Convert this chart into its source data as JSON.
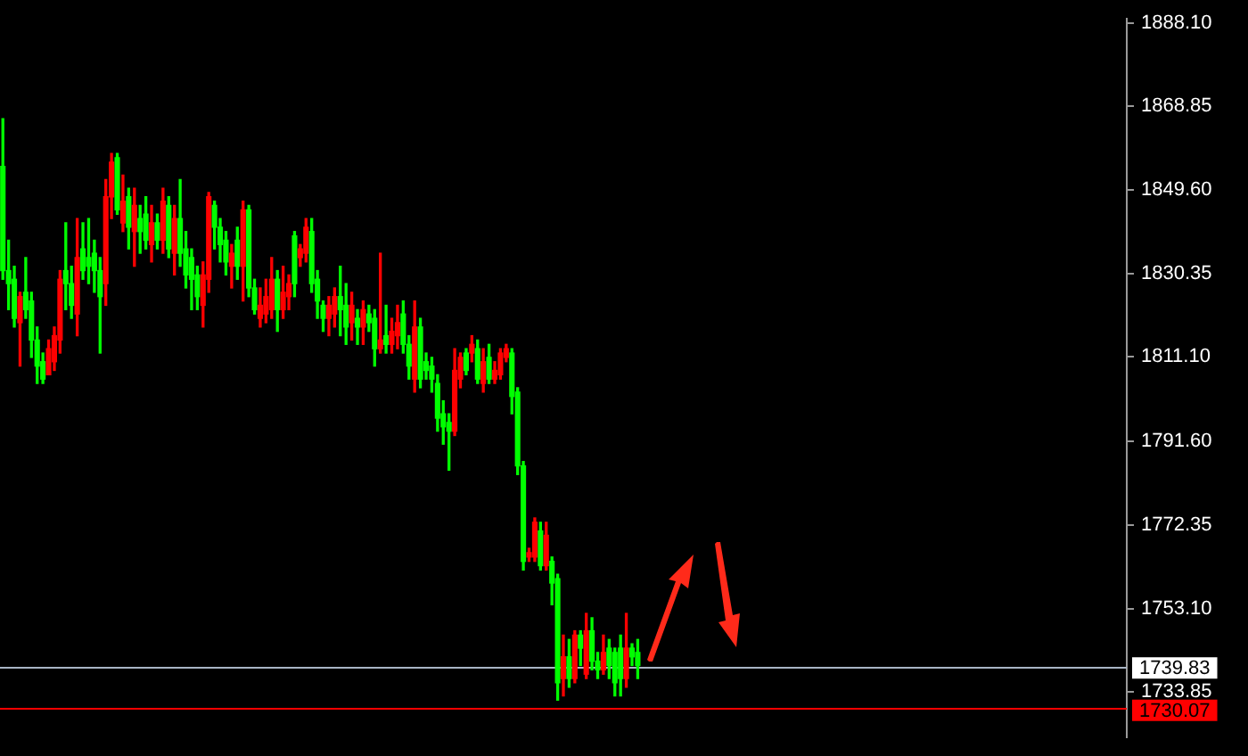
{
  "chart_data": {
    "type": "candlestick",
    "categories": [
      null,
      null,
      null,
      null,
      null,
      null,
      null,
      null,
      null,
      null,
      null,
      null,
      null,
      null,
      null,
      null,
      null,
      null,
      null,
      null,
      null,
      null,
      null,
      null,
      null,
      null,
      null,
      null,
      null,
      null,
      null,
      null,
      null,
      null,
      null,
      null,
      null,
      null,
      null,
      null,
      null,
      null,
      null,
      null,
      null,
      null,
      null,
      null,
      null,
      null,
      null,
      null,
      null,
      null,
      null,
      null,
      null,
      null,
      null,
      null,
      null,
      null,
      null,
      null,
      null,
      null,
      null,
      null,
      null,
      null,
      null,
      null,
      null,
      null,
      null,
      null,
      null,
      null,
      null,
      null,
      null,
      null,
      null,
      null,
      null,
      null,
      null,
      null,
      null,
      null,
      null,
      null,
      null,
      null,
      null,
      null,
      null,
      null,
      null,
      null,
      null,
      null,
      null,
      null,
      null,
      null,
      null,
      null,
      null,
      null,
      null,
      null,
      null,
      null,
      null,
      null,
      null,
      null,
      null,
      null,
      null,
      null,
      null,
      null,
      null,
      null,
      null,
      null,
      null,
      null,
      null,
      null,
      null,
      null,
      null,
      null,
      null,
      null,
      null,
      null,
      null,
      null,
      null,
      null,
      null,
      null,
      null,
      null,
      null,
      null,
      null,
      null,
      null,
      null,
      null,
      null,
      null,
      null,
      null,
      null,
      null,
      null,
      null,
      null,
      null,
      null,
      null,
      null,
      null,
      null,
      null,
      null,
      null,
      null,
      null,
      null,
      null,
      null,
      null,
      null,
      null,
      null,
      null,
      null,
      null,
      null,
      null,
      null,
      null,
      null,
      null,
      null,
      null,
      null,
      null,
      null,
      null
    ],
    "ohlc": [
      [
        1855,
        1866,
        1829,
        1831
      ],
      [
        1831,
        1838,
        1822,
        1828
      ],
      [
        1829,
        1832,
        1818,
        1820
      ],
      [
        1819,
        1826,
        1809,
        1825
      ],
      [
        1826,
        1834,
        1820,
        1822
      ],
      [
        1824,
        1826,
        1811,
        1815
      ],
      [
        1815,
        1818,
        1805,
        1809
      ],
      [
        1810,
        1812,
        1805,
        1806
      ],
      [
        1807,
        1815,
        1807,
        1813
      ],
      [
        1810,
        1818,
        1808,
        1816
      ],
      [
        1815,
        1831,
        1812,
        1829
      ],
      [
        1831,
        1842,
        1822,
        1828
      ],
      [
        1828,
        1832,
        1820,
        1823
      ],
      [
        1821,
        1843,
        1816,
        1834
      ],
      [
        1836,
        1842,
        1829,
        1831
      ],
      [
        1834,
        1843,
        1828,
        1832
      ],
      [
        1835,
        1838,
        1826,
        1831
      ],
      [
        1831,
        1834,
        1812,
        1825
      ],
      [
        1828,
        1852,
        1823,
        1848
      ],
      [
        1848,
        1858,
        1843,
        1856
      ],
      [
        1857,
        1858,
        1844,
        1845
      ],
      [
        1842,
        1853,
        1840,
        1847
      ],
      [
        1848,
        1850,
        1836,
        1841
      ],
      [
        1840,
        1850,
        1832,
        1846
      ],
      [
        1843,
        1846,
        1835,
        1840
      ],
      [
        1844,
        1848,
        1836,
        1838
      ],
      [
        1837,
        1846,
        1833,
        1842
      ],
      [
        1842,
        1844,
        1836,
        1838
      ],
      [
        1838,
        1850,
        1835,
        1847
      ],
      [
        1846,
        1848,
        1834,
        1836
      ],
      [
        1835,
        1846,
        1830,
        1843
      ],
      [
        1843,
        1852,
        1832,
        1835
      ],
      [
        1836,
        1840,
        1827,
        1830
      ],
      [
        1834,
        1836,
        1822,
        1829
      ],
      [
        1830,
        1832,
        1822,
        1825
      ],
      [
        1823,
        1833,
        1818,
        1830
      ],
      [
        1829,
        1849,
        1826,
        1848
      ],
      [
        1846,
        1847,
        1836,
        1841
      ],
      [
        1841,
        1843,
        1833,
        1837
      ],
      [
        1838,
        1840,
        1830,
        1833
      ],
      [
        1832,
        1837,
        1827,
        1835
      ],
      [
        1838,
        1841,
        1829,
        1832
      ],
      [
        1832,
        1847,
        1824,
        1845
      ],
      [
        1845,
        1846,
        1825,
        1827
      ],
      [
        1827,
        1829,
        1821,
        1822
      ],
      [
        1820,
        1827,
        1818,
        1823
      ],
      [
        1821,
        1829,
        1819,
        1825
      ],
      [
        1822,
        1834,
        1820,
        1829
      ],
      [
        1829,
        1831,
        1817,
        1822
      ],
      [
        1822,
        1832,
        1820,
        1826
      ],
      [
        1825,
        1830,
        1822,
        1828
      ],
      [
        1839,
        1840,
        1825,
        1828
      ],
      [
        1834,
        1837,
        1832,
        1836
      ],
      [
        1835,
        1843,
        1833,
        1841
      ],
      [
        1840,
        1843,
        1826,
        1828
      ],
      [
        1829,
        1831,
        1820,
        1824
      ],
      [
        1823,
        1824,
        1817,
        1820
      ],
      [
        1820,
        1825,
        1816,
        1823
      ],
      [
        1821,
        1827,
        1818,
        1825
      ],
      [
        1825,
        1832,
        1816,
        1822
      ],
      [
        1823,
        1828,
        1814,
        1818
      ],
      [
        1819,
        1826,
        1815,
        1823
      ],
      [
        1820,
        1822,
        1814,
        1818
      ],
      [
        1818,
        1824,
        1814,
        1822
      ],
      [
        1821,
        1823,
        1817,
        1819
      ],
      [
        1820,
        1822,
        1809,
        1813
      ],
      [
        1813,
        1835,
        1812,
        1815
      ],
      [
        1816,
        1823,
        1812,
        1814
      ],
      [
        1814,
        1820,
        1812,
        1817
      ],
      [
        1816,
        1823,
        1813,
        1819
      ],
      [
        1821,
        1824,
        1812,
        1814
      ],
      [
        1814,
        1816,
        1806,
        1809
      ],
      [
        1806,
        1824,
        1803,
        1818
      ],
      [
        1818,
        1820,
        1804,
        1806
      ],
      [
        1810,
        1812,
        1806,
        1808
      ],
      [
        1809,
        1811,
        1803,
        1806
      ],
      [
        1805,
        1807,
        1794,
        1797
      ],
      [
        1798,
        1801,
        1791,
        1795
      ],
      [
        1796,
        1798,
        1785,
        1794
      ],
      [
        1794,
        1813,
        1793,
        1808
      ],
      [
        1806,
        1812,
        1804,
        1811
      ],
      [
        1812,
        1813,
        1807,
        1808
      ],
      [
        1812,
        1816,
        1810,
        1814
      ],
      [
        1813,
        1815,
        1805,
        1806
      ],
      [
        1805,
        1813,
        1803,
        1810
      ],
      [
        1811,
        1814,
        1805,
        1806
      ],
      [
        1806,
        1810,
        1805,
        1808
      ],
      [
        1807,
        1813,
        1806,
        1812
      ],
      [
        1811,
        1814,
        1810,
        1813
      ],
      [
        1812,
        1813,
        1798,
        1802
      ],
      [
        1803,
        1804,
        1784,
        1786
      ],
      [
        1786,
        1787,
        1762,
        1764
      ],
      [
        1765,
        1767,
        1764,
        1766
      ],
      [
        1765,
        1774,
        1764,
        1773
      ],
      [
        1771,
        1773,
        1762,
        1763
      ],
      [
        1763,
        1773,
        1762,
        1770
      ],
      [
        1764,
        1765,
        1754,
        1759
      ],
      [
        1760,
        1761,
        1732,
        1736
      ],
      [
        1737,
        1747,
        1733,
        1742
      ],
      [
        1742,
        1746,
        1735,
        1737
      ],
      [
        1737,
        1748,
        1736,
        1747
      ],
      [
        1747,
        1748,
        1740,
        1744
      ],
      [
        1738,
        1752,
        1737,
        1748
      ],
      [
        1748,
        1751,
        1739,
        1741
      ],
      [
        1741,
        1743,
        1737,
        1739
      ],
      [
        1739,
        1747,
        1738,
        1743
      ],
      [
        1744,
        1746,
        1737,
        1740
      ],
      [
        1743,
        1744,
        1733,
        1736
      ],
      [
        1744,
        1747,
        1733,
        1737
      ],
      [
        1737,
        1752,
        1735,
        1744
      ],
      [
        1744,
        1745,
        1740,
        1742
      ],
      [
        1743,
        1746,
        1737,
        1740
      ],
      null,
      null,
      null,
      null,
      null,
      null,
      null,
      null,
      null,
      null,
      null,
      null,
      null,
      null,
      null,
      null,
      null,
      null,
      null,
      null,
      null,
      null,
      null,
      null,
      null,
      null,
      null,
      null,
      null,
      null,
      null,
      null,
      null,
      null,
      null,
      null,
      null,
      null,
      null,
      null,
      null,
      null,
      null,
      null,
      null,
      null,
      null,
      null,
      null,
      null,
      null,
      null,
      null,
      null,
      null,
      null,
      null,
      null,
      null,
      null,
      null,
      null,
      null,
      null,
      null,
      null,
      null,
      null,
      null,
      null,
      null,
      null,
      null,
      null,
      null,
      null,
      null,
      null,
      null,
      null,
      null,
      null,
      null,
      null,
      null
    ],
    "colors": [
      "#00ff00",
      "#00ff00",
      "#00ff00",
      "#ff0000",
      "#00ff00",
      "#00ff00",
      "#00ff00",
      "#00ff00",
      "#ff0000",
      "#ff0000",
      "#ff0000",
      "#00ff00",
      "#00ff00",
      "#ff0000",
      "#00ff00",
      "#00ff00",
      "#00ff00",
      "#00ff00",
      "#ff0000",
      "#ff0000",
      "#00ff00",
      "#ff0000",
      "#00ff00",
      "#ff0000",
      "#00ff00",
      "#00ff00",
      "#ff0000",
      "#00ff00",
      "#ff0000",
      "#00ff00",
      "#ff0000",
      "#00ff00",
      "#00ff00",
      "#00ff00",
      "#00ff00",
      "#ff0000",
      "#ff0000",
      "#00ff00",
      "#00ff00",
      "#00ff00",
      "#ff0000",
      "#00ff00",
      "#ff0000",
      "#00ff00",
      "#00ff00",
      "#ff0000",
      "#ff0000",
      "#ff0000",
      "#00ff00",
      "#ff0000",
      "#ff0000",
      "#00ff00",
      "#ff0000",
      "#ff0000",
      "#00ff00",
      "#00ff00",
      "#00ff00",
      "#ff0000",
      "#ff0000",
      "#00ff00",
      "#00ff00",
      "#ff0000",
      "#00ff00",
      "#ff0000",
      "#00ff00",
      "#00ff00",
      "#ff0000",
      "#00ff00",
      "#ff0000",
      "#ff0000",
      "#00ff00",
      "#00ff00",
      "#ff0000",
      "#00ff00",
      "#00ff00",
      "#00ff00",
      "#00ff00",
      "#00ff00",
      "#00ff00",
      "#ff0000",
      "#ff0000",
      "#00ff00",
      "#ff0000",
      "#00ff00",
      "#ff0000",
      "#00ff00",
      "#ff0000",
      "#ff0000",
      "#ff0000",
      "#00ff00",
      "#00ff00",
      "#00ff00",
      "#ff0000",
      "#ff0000",
      "#00ff00",
      "#ff0000",
      "#00ff00",
      "#00ff00",
      "#ff0000",
      "#00ff00",
      "#ff0000",
      "#00ff00",
      "#ff0000",
      "#00ff00",
      "#00ff00",
      "#ff0000",
      "#00ff00",
      "#00ff00",
      "#00ff00",
      "#ff0000",
      "#00ff00",
      "#00ff00",
      null,
      null,
      null,
      null,
      null,
      null,
      null,
      null,
      null,
      null,
      null,
      null,
      null,
      null,
      null,
      null,
      null,
      null,
      null,
      null,
      null,
      null,
      null,
      null,
      null,
      null,
      null,
      null,
      null,
      null,
      null,
      null,
      null,
      null,
      null,
      null,
      null,
      null,
      null,
      null,
      null,
      null,
      null,
      null,
      null,
      null,
      null,
      null,
      null,
      null,
      null,
      null,
      null,
      null,
      null,
      null,
      null,
      null,
      null,
      null,
      null,
      null,
      null,
      null,
      null,
      null,
      null,
      null,
      null,
      null,
      null,
      null,
      null,
      null,
      null,
      null,
      null,
      null,
      null,
      null,
      null,
      null,
      null,
      null,
      null
    ],
    "ylim": [
      1723.5,
      1889
    ],
    "yticks": [
      {
        "value": 1888.1,
        "label": "1888.10"
      },
      {
        "value": 1868.85,
        "label": "1868.85"
      },
      {
        "value": 1849.6,
        "label": "1849.60"
      },
      {
        "value": 1830.35,
        "label": "1830.35"
      },
      {
        "value": 1811.1,
        "label": "1811.10"
      },
      {
        "value": 1791.6,
        "label": "1791.60"
      },
      {
        "value": 1772.35,
        "label": "1772.35"
      },
      {
        "value": 1753.1,
        "label": "1753.10"
      },
      {
        "value": 1733.85,
        "label": "1733.85"
      }
    ],
    "ref_lines": [
      {
        "axis": "y",
        "value": 1739.83,
        "label": "1739.83",
        "color": "#a8b4c4"
      },
      {
        "axis": "y",
        "value": 1730.07,
        "label": "1730.07",
        "color": "#ff0000"
      }
    ],
    "grid": false,
    "legend": false
  }
}
